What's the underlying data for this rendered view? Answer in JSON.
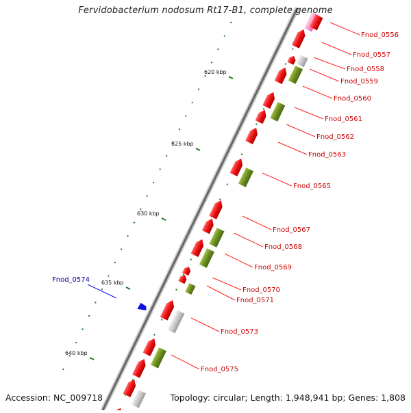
{
  "title": "Fervidobacterium nodosum Rt17-B1, complete genome",
  "footer": {
    "accession": "Accession: NC_009718",
    "summary": "Topology: circular; Length: 1,948,941 bp; Genes: 1,808"
  },
  "colors": {
    "gene_red": "#ee1111",
    "gene_green": "#6b8e23",
    "gene_gray": "#c8c8c8",
    "gene_pink": "#ff55aa",
    "gene_blue": "#1010dd",
    "label_red": "#cc0000",
    "label_blue": "#000099",
    "tick_green": "#1a7a1a",
    "axis_gray": "#777777"
  },
  "scale_labels": [
    "620 kbp",
    "625 kbp",
    "630 kbp",
    "635 kbp",
    "640 kbp"
  ],
  "gene_labels": [
    {
      "name": "Fnod_0556",
      "color": "red"
    },
    {
      "name": "Fnod_0557",
      "color": "red"
    },
    {
      "name": "Fnod_0558",
      "color": "red"
    },
    {
      "name": "Fnod_0559",
      "color": "red"
    },
    {
      "name": "Fnod_0560",
      "color": "red"
    },
    {
      "name": "Fnod_0561",
      "color": "red"
    },
    {
      "name": "Fnod_0562",
      "color": "red"
    },
    {
      "name": "Fnod_0563",
      "color": "red"
    },
    {
      "name": "Fnod_0565",
      "color": "red"
    },
    {
      "name": "Fnod_0567",
      "color": "red"
    },
    {
      "name": "Fnod_0568",
      "color": "red"
    },
    {
      "name": "Fnod_0569",
      "color": "red"
    },
    {
      "name": "Fnod_0570",
      "color": "red"
    },
    {
      "name": "Fnod_0571",
      "color": "red"
    },
    {
      "name": "Fnod_0573",
      "color": "red"
    },
    {
      "name": "Fnod_0575",
      "color": "red"
    },
    {
      "name": "Fnod_0574",
      "color": "blue"
    }
  ]
}
